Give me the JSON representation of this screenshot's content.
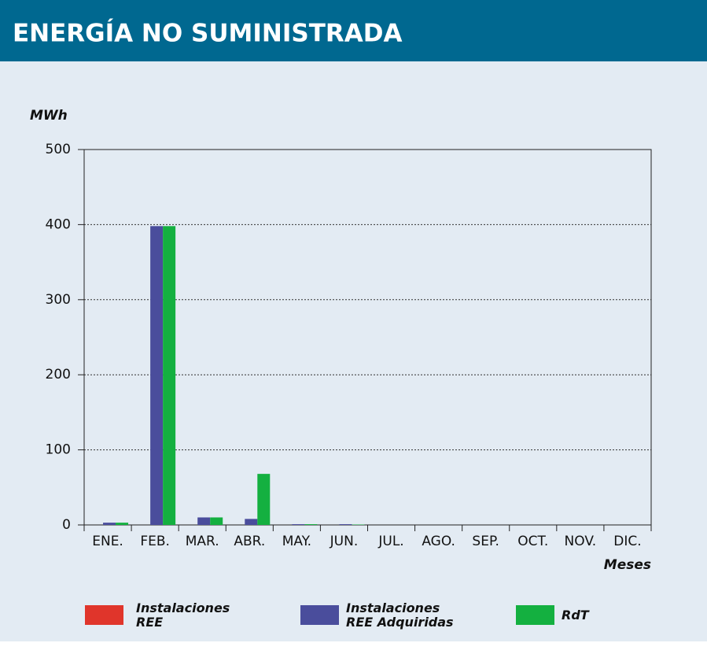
{
  "chart_data": {
    "type": "bar",
    "title": "ENERGÍA NO SUMINISTRADA",
    "y_label": "MWh",
    "x_label": "Meses",
    "categories": [
      "ENE.",
      "FEB.",
      "MAR.",
      "ABR.",
      "MAY.",
      "JUN.",
      "JUL.",
      "AGO.",
      "SEP.",
      "OCT.",
      "NOV.",
      "DIC."
    ],
    "series": [
      {
        "name": "Instalaciones REE",
        "color": "#e0352b",
        "values": [
          0,
          0,
          0,
          0,
          0,
          0,
          0,
          0,
          0,
          0,
          0,
          0
        ]
      },
      {
        "name": "Instalaciones REE Adquiridas",
        "color": "#4a4d9c",
        "values": [
          3,
          398,
          10,
          8,
          1,
          1,
          0,
          0,
          0,
          0,
          0,
          0
        ]
      },
      {
        "name": "RdT",
        "color": "#14b040",
        "values": [
          3,
          398,
          10,
          68,
          1,
          0.5,
          0,
          0,
          0,
          0,
          0,
          0
        ]
      }
    ],
    "ylim": [
      0,
      500
    ],
    "yticks": [
      0,
      100,
      200,
      300,
      400,
      500
    ],
    "grid": true
  }
}
